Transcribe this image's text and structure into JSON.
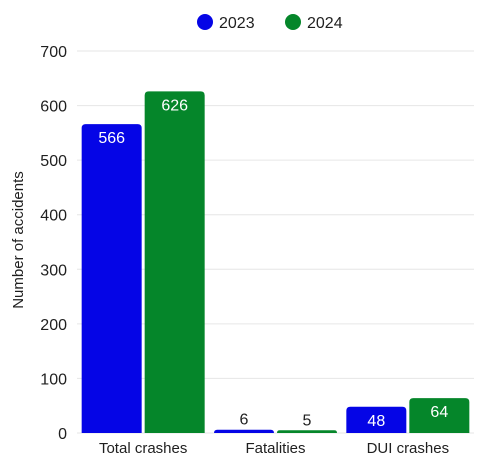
{
  "chart_data": {
    "type": "bar",
    "categories": [
      "Total crashes",
      "Fatalities",
      "DUI crashes"
    ],
    "series": [
      {
        "name": "2023",
        "values": [
          566,
          6,
          48
        ],
        "color": "#0505e6"
      },
      {
        "name": "2024",
        "values": [
          626,
          5,
          64
        ],
        "color": "#05862a"
      }
    ],
    "ylabel": "Number of accidents",
    "xlabel": "",
    "ylim": [
      0,
      700
    ],
    "yticks": [
      0,
      100,
      200,
      300,
      400,
      500,
      600,
      700
    ],
    "grid": true,
    "legend_position": "top-center"
  }
}
